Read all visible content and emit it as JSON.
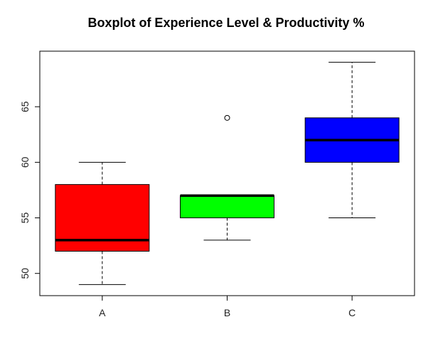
{
  "chart_data": {
    "type": "boxplot",
    "title": "Boxplot of Experience Level & Productivity %",
    "xlabel": "",
    "ylabel": "",
    "ylim": [
      48,
      70
    ],
    "yticks": [
      "50",
      "55",
      "60",
      "65"
    ],
    "categories": [
      "A",
      "B",
      "C"
    ],
    "boxes": [
      {
        "name": "A",
        "min": 49,
        "q1": 52,
        "median": 53,
        "q3": 58,
        "max": 60,
        "outliers": [],
        "color": "#ff0000"
      },
      {
        "name": "B",
        "min": 53,
        "q1": 55,
        "median": 57,
        "q3": 57,
        "max": 57,
        "outliers": [
          64
        ],
        "color": "#00ff00"
      },
      {
        "name": "C",
        "min": 55,
        "q1": 60,
        "median": 62,
        "q3": 64,
        "max": 69,
        "outliers": [],
        "color": "#0000ff"
      }
    ],
    "grid": false,
    "legend": "none"
  }
}
